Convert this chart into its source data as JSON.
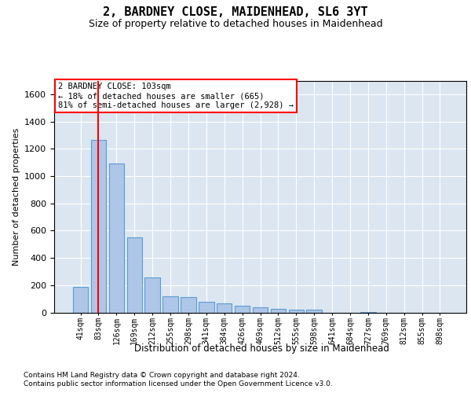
{
  "title": "2, BARDNEY CLOSE, MAIDENHEAD, SL6 3YT",
  "subtitle": "Size of property relative to detached houses in Maidenhead",
  "xlabel": "Distribution of detached houses by size in Maidenhead",
  "ylabel": "Number of detached properties",
  "categories": [
    "41sqm",
    "83sqm",
    "126sqm",
    "169sqm",
    "212sqm",
    "255sqm",
    "298sqm",
    "341sqm",
    "384sqm",
    "426sqm",
    "469sqm",
    "512sqm",
    "555sqm",
    "598sqm",
    "641sqm",
    "684sqm",
    "727sqm",
    "769sqm",
    "812sqm",
    "855sqm",
    "898sqm"
  ],
  "values": [
    190,
    1265,
    1090,
    550,
    255,
    120,
    115,
    75,
    65,
    50,
    35,
    25,
    20,
    20,
    0,
    0,
    5,
    0,
    0,
    0,
    0
  ],
  "bar_color": "#aec6e8",
  "bar_edge_color": "#5b9bd5",
  "background_color": "#dce6f1",
  "vline_color": "red",
  "vline_x": 1.0,
  "annotation_text": "2 BARDNEY CLOSE: 103sqm\n← 18% of detached houses are smaller (665)\n81% of semi-detached houses are larger (2,928) →",
  "annotation_box_facecolor": "white",
  "annotation_box_edgecolor": "red",
  "ylim": [
    0,
    1700
  ],
  "yticks": [
    0,
    200,
    400,
    600,
    800,
    1000,
    1200,
    1400,
    1600
  ],
  "footnote1": "Contains HM Land Registry data © Crown copyright and database right 2024.",
  "footnote2": "Contains public sector information licensed under the Open Government Licence v3.0."
}
